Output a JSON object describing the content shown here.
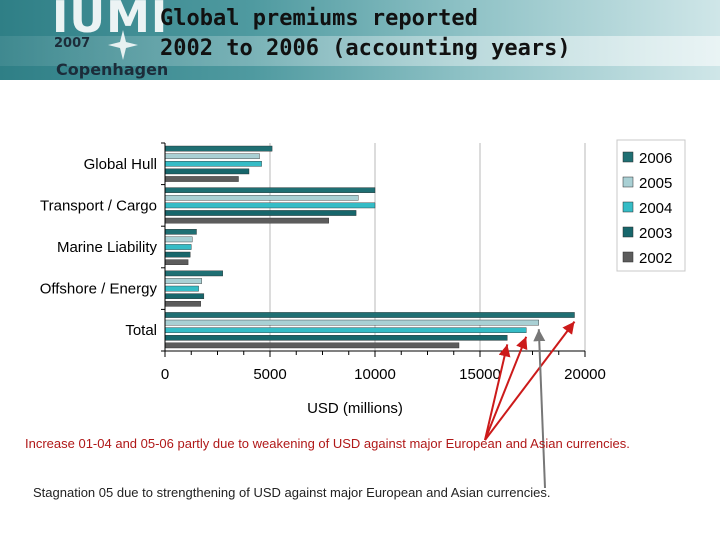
{
  "header": {
    "title_line1": "Global premiums reported",
    "title_line2": "2002 to 2006 (accounting years)",
    "logo_text": "IUMI",
    "logo_year": "2007",
    "logo_city": "Copenhagen"
  },
  "colors": {
    "header_dark": "#2f7f86",
    "header_light": "#cfe6e8",
    "arrow_red": "#cc1a1a",
    "arrow_gray": "#777777",
    "note_red": "#b01818"
  },
  "chart_data": {
    "type": "bar",
    "orientation": "horizontal",
    "title": "",
    "xlabel": "USD (millions)",
    "ylabel": "",
    "xlim": [
      0,
      20000
    ],
    "xticks": [
      0,
      5000,
      10000,
      15000,
      20000
    ],
    "grid": "vertical gridlines",
    "legend_position": "right",
    "categories": [
      "Global Hull",
      "Transport  / Cargo",
      "Marine Liability",
      "Offshore / Energy",
      "Total"
    ],
    "series": [
      {
        "name": "2006",
        "color": "#1f6f73",
        "values": [
          5100,
          10000,
          1500,
          2750,
          19500
        ]
      },
      {
        "name": "2005",
        "color": "#a9d0d4",
        "values": [
          4500,
          9200,
          1300,
          1750,
          17800
        ]
      },
      {
        "name": "2004",
        "color": "#35bcc6",
        "values": [
          4600,
          10000,
          1250,
          1600,
          17200
        ]
      },
      {
        "name": "2003",
        "color": "#17666b",
        "values": [
          4000,
          9100,
          1200,
          1850,
          16300
        ]
      },
      {
        "name": "2002",
        "color": "#5c5c5c",
        "values": [
          3500,
          7800,
          1100,
          1700,
          14000
        ]
      }
    ]
  },
  "notes": {
    "increase": "Increase 01-04 and 05-06 partly due to weakening of USD against major European and Asian currencies.",
    "stagnation": "Stagnation 05 due to strengthening of USD against major European and Asian currencies."
  }
}
